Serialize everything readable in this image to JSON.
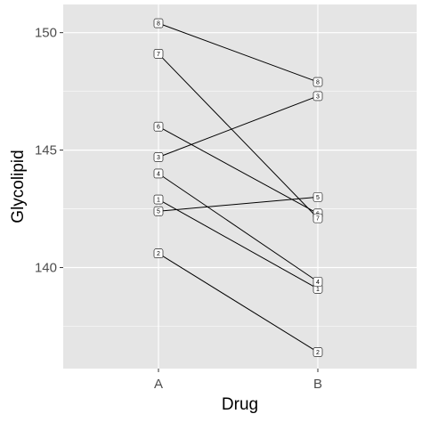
{
  "chart_data": {
    "type": "line",
    "xlabel": "Drug",
    "ylabel": "Glycolipid",
    "categories": [
      "A",
      "B"
    ],
    "yticks": [
      140,
      145,
      150
    ],
    "ylim": [
      135.7,
      151.2
    ],
    "grid": true,
    "legend": "none",
    "colors": {
      "panel": "#e5e5e5",
      "grid": "#ffffff",
      "line": "#000000",
      "label_fill": "#ffffff",
      "tick_text": "#4d4d4d"
    },
    "series": [
      {
        "name": "1",
        "values": [
          142.9,
          139.1
        ]
      },
      {
        "name": "2",
        "values": [
          140.6,
          136.4
        ]
      },
      {
        "name": "3",
        "values": [
          144.7,
          147.3
        ]
      },
      {
        "name": "4",
        "values": [
          144.0,
          139.4
        ]
      },
      {
        "name": "5",
        "values": [
          142.4,
          143.0
        ]
      },
      {
        "name": "6",
        "values": [
          146.0,
          142.3
        ]
      },
      {
        "name": "7",
        "values": [
          149.1,
          142.1
        ]
      },
      {
        "name": "8",
        "values": [
          150.4,
          147.9
        ]
      }
    ]
  }
}
